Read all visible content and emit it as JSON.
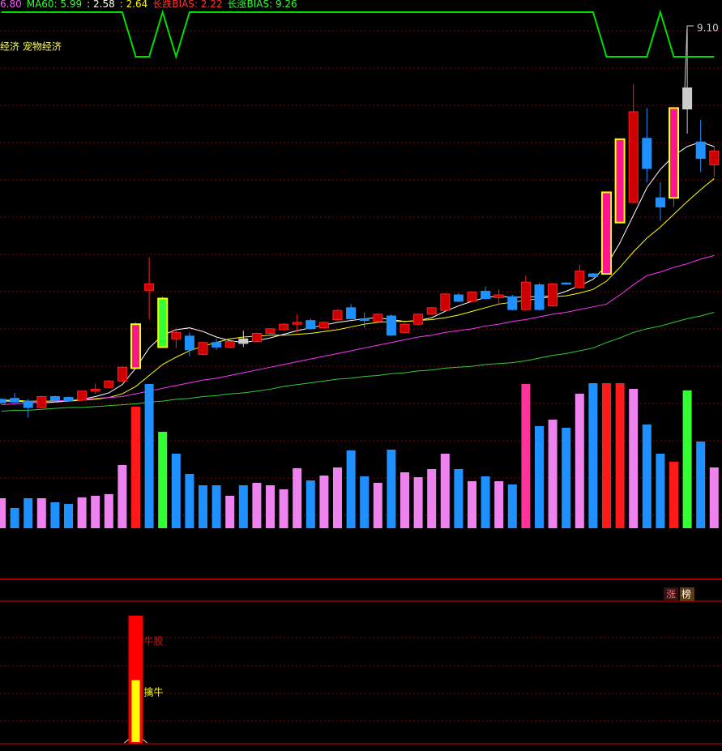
{
  "header": {
    "items": [
      {
        "text": "6.80",
        "color": "#ff55ff"
      },
      {
        "text": "MA60: 5.99",
        "color": "#33ff33"
      },
      {
        "text": ": 2.58",
        "color": "#ffffff"
      },
      {
        "text": ": 2.64",
        "color": "#ffff00"
      },
      {
        "text": "长跌BIAS: 2.22",
        "color": "#ff3030"
      },
      {
        "text": "长涨BIAS: 9.26",
        "color": "#33ff33"
      }
    ],
    "concept": "经济 宠物经济",
    "price_mark": "9.10",
    "badges": [
      "涨",
      "榜"
    ]
  },
  "chart_data": [
    {
      "type": "candlestick",
      "open": [
        5.04,
        5.05,
        5.02,
        4.95,
        5.07,
        5.06,
        5.03,
        5.13,
        5.17,
        5.24,
        5.38,
        6.23,
        6.14,
        5.7,
        5.73,
        5.53,
        5.66,
        5.61,
        5.7,
        5.67,
        5.76,
        5.8,
        5.86,
        5.9,
        5.82,
        5.91,
        6.04,
        5.92,
        5.89,
        5.95,
        5.77,
        5.86,
        5.97,
        6.01,
        6.18,
        6.11,
        6.22,
        6.15,
        6.16,
        6.02,
        6.29,
        6.06,
        6.31,
        6.26,
        6.41,
        6.41,
        6.97,
        7.19,
        7.89,
        7.24,
        7.24,
        8.44,
        7.85,
        7.6
      ],
      "high": [
        5.05,
        5.11,
        5.04,
        5.08,
        5.08,
        5.07,
        5.13,
        5.21,
        5.25,
        5.4,
        5.88,
        6.59,
        6.16,
        5.82,
        5.77,
        5.66,
        5.7,
        5.68,
        5.79,
        5.77,
        5.82,
        5.87,
        5.97,
        5.92,
        5.89,
        6.02,
        6.08,
        5.99,
        5.98,
        5.97,
        5.87,
        5.98,
        6.05,
        6.2,
        6.2,
        6.22,
        6.27,
        6.24,
        6.18,
        6.39,
        6.31,
        6.31,
        6.32,
        6.51,
        6.42,
        7.3,
        7.88,
        8.48,
        8.22,
        7.41,
        8.22,
        9.1,
        8.09,
        7.81
      ],
      "low": [
        4.99,
        5.0,
        4.84,
        4.94,
        5.02,
        5.01,
        5.02,
        5.1,
        5.16,
        5.23,
        5.37,
        5.91,
        5.6,
        5.6,
        5.51,
        5.52,
        5.58,
        5.6,
        5.61,
        5.66,
        5.75,
        5.79,
        5.77,
        5.8,
        5.81,
        5.9,
        5.91,
        5.82,
        5.88,
        5.73,
        5.76,
        5.85,
        5.96,
        6.0,
        6.1,
        6.1,
        6.13,
        6.08,
        6.01,
        6.01,
        6.01,
        6.05,
        6.29,
        6.25,
        6.37,
        6.4,
        6.96,
        7.18,
        7.41,
        6.99,
        7.14,
        7.94,
        7.52,
        7.47
      ],
      "close": [
        5.0,
        5.01,
        4.95,
        5.07,
        5.03,
        5.02,
        5.13,
        5.15,
        5.24,
        5.39,
        5.86,
        6.3,
        5.61,
        5.77,
        5.58,
        5.66,
        5.61,
        5.67,
        5.65,
        5.76,
        5.81,
        5.86,
        5.88,
        5.81,
        5.88,
        6.01,
        5.92,
        5.9,
        5.97,
        5.74,
        5.86,
        5.97,
        6.04,
        6.19,
        6.11,
        6.21,
        6.14,
        6.18,
        6.02,
        6.32,
        6.02,
        6.3,
        6.3,
        6.44,
        6.38,
        7.3,
        7.88,
        8.18,
        7.56,
        7.14,
        8.22,
        8.21,
        7.67,
        7.75
      ],
      "colors": [
        "#1e90ff",
        "#1e90ff",
        "#1e90ff",
        "#cc0000",
        "#1e90ff",
        "#1e90ff",
        "#cc0000",
        "#cc0000",
        "#cc0000",
        "#cc0000",
        "#ff1493",
        "#cc0000",
        "#33ff33",
        "#cc0000",
        "#1e90ff",
        "#cc0000",
        "#1e90ff",
        "#cc0000",
        "#cccccc",
        "#cc0000",
        "#cc0000",
        "#cc0000",
        "#cc0000",
        "#1e90ff",
        "#cc0000",
        "#cc0000",
        "#1e90ff",
        "#1e90ff",
        "#cc0000",
        "#1e90ff",
        "#cc0000",
        "#cc0000",
        "#cc0000",
        "#cc0000",
        "#1e90ff",
        "#cc0000",
        "#1e90ff",
        "#cc0000",
        "#1e90ff",
        "#cc0000",
        "#1e90ff",
        "#cc0000",
        "#1e90ff",
        "#cc0000",
        "#1e90ff",
        "#ff1493",
        "#ff1493",
        "#cc0000",
        "#1e90ff",
        "#1e90ff",
        "#ff1493",
        "#cccccc",
        "#1e90ff",
        "#cc0000"
      ],
      "lines": [
        {
          "color": "#ffffff",
          "values": [
            5.02,
            5.02,
            5.01,
            5.0,
            5.01,
            5.02,
            5.04,
            5.07,
            5.11,
            5.2,
            5.38,
            5.6,
            5.74,
            5.8,
            5.82,
            5.78,
            5.72,
            5.68,
            5.66,
            5.68,
            5.71,
            5.75,
            5.79,
            5.82,
            5.85,
            5.88,
            5.9,
            5.92,
            5.93,
            5.91,
            5.89,
            5.9,
            5.93,
            6.0,
            6.06,
            6.11,
            6.15,
            6.17,
            6.15,
            6.16,
            6.16,
            6.17,
            6.22,
            6.28,
            6.35,
            6.5,
            6.75,
            7.05,
            7.35,
            7.55,
            7.7,
            7.8,
            7.85,
            7.8
          ]
        },
        {
          "color": "#ffff00",
          "values": [
            5.03,
            5.03,
            5.02,
            5.02,
            5.02,
            5.02,
            5.03,
            5.04,
            5.06,
            5.1,
            5.18,
            5.3,
            5.42,
            5.5,
            5.57,
            5.62,
            5.66,
            5.7,
            5.72,
            5.73,
            5.74,
            5.74,
            5.75,
            5.76,
            5.78,
            5.8,
            5.83,
            5.86,
            5.88,
            5.89,
            5.89,
            5.9,
            5.91,
            5.93,
            5.96,
            6.0,
            6.04,
            6.08,
            6.1,
            6.12,
            6.14,
            6.16,
            6.17,
            6.2,
            6.24,
            6.33,
            6.48,
            6.65,
            6.8,
            6.92,
            7.06,
            7.2,
            7.33,
            7.45
          ]
        },
        {
          "color": "#ff33ff",
          "values": [
            4.98,
            4.99,
            5.0,
            5.01,
            5.02,
            5.03,
            5.04,
            5.05,
            5.06,
            5.07,
            5.1,
            5.13,
            5.16,
            5.19,
            5.22,
            5.25,
            5.27,
            5.3,
            5.33,
            5.36,
            5.39,
            5.42,
            5.45,
            5.48,
            5.51,
            5.54,
            5.57,
            5.6,
            5.63,
            5.66,
            5.69,
            5.72,
            5.74,
            5.77,
            5.79,
            5.81,
            5.84,
            5.86,
            5.89,
            5.91,
            5.94,
            5.97,
            5.99,
            6.02,
            6.05,
            6.08,
            6.18,
            6.29,
            6.39,
            6.43,
            6.48,
            6.52,
            6.57,
            6.61
          ]
        },
        {
          "color": "#33cc33",
          "values": [
            4.91,
            4.92,
            4.92,
            4.93,
            4.94,
            4.95,
            4.95,
            4.96,
            4.97,
            4.98,
            4.99,
            5.01,
            5.02,
            5.04,
            5.05,
            5.07,
            5.08,
            5.1,
            5.11,
            5.13,
            5.15,
            5.18,
            5.2,
            5.22,
            5.24,
            5.26,
            5.27,
            5.29,
            5.3,
            5.32,
            5.33,
            5.35,
            5.36,
            5.38,
            5.39,
            5.4,
            5.42,
            5.43,
            5.44,
            5.46,
            5.49,
            5.52,
            5.54,
            5.57,
            5.6,
            5.66,
            5.71,
            5.77,
            5.81,
            5.84,
            5.88,
            5.92,
            5.95,
            5.99
          ]
        }
      ],
      "ylim": [
        4.8,
        9.4
      ]
    },
    {
      "type": "bar",
      "values": [
        37,
        25,
        37,
        37,
        32,
        30,
        38,
        40,
        42,
        78,
        150,
        178,
        119,
        92,
        67,
        53,
        53,
        40,
        53,
        56,
        53,
        48,
        74,
        59,
        65,
        75,
        96,
        64,
        56,
        97,
        69,
        63,
        73,
        92,
        73,
        58,
        64,
        58,
        54,
        178,
        126,
        134,
        124,
        166,
        179,
        179,
        179,
        172,
        128,
        92,
        82,
        170,
        107,
        75
      ],
      "colors": [
        "#ee82ee",
        "#1e90ff",
        "#1e90ff",
        "#ee82ee",
        "#1e90ff",
        "#1e90ff",
        "#ee82ee",
        "#ee82ee",
        "#ee82ee",
        "#ee82ee",
        "#ff1a1a",
        "#1e90ff",
        "#33ff33",
        "#1e90ff",
        "#1e90ff",
        "#1e90ff",
        "#1e90ff",
        "#ee82ee",
        "#1e90ff",
        "#ee82ee",
        "#ee82ee",
        "#ee82ee",
        "#ee82ee",
        "#1e90ff",
        "#ee82ee",
        "#ee82ee",
        "#1e90ff",
        "#1e90ff",
        "#ee82ee",
        "#1e90ff",
        "#ee82ee",
        "#ee82ee",
        "#ee82ee",
        "#ee82ee",
        "#1e90ff",
        "#ee82ee",
        "#1e90ff",
        "#ee82ee",
        "#1e90ff",
        "#ff3399",
        "#1e90ff",
        "#ee82ee",
        "#1e90ff",
        "#ee82ee",
        "#1e90ff",
        "#ff1a1a",
        "#ff1a1a",
        "#ee82ee",
        "#1e90ff",
        "#1e90ff",
        "#ff1a1a",
        "#33ff33",
        "#1e90ff",
        "#ee82ee"
      ],
      "ylim": [
        0,
        180
      ]
    },
    {
      "type": "step",
      "values": [
        1,
        1,
        1,
        1,
        1,
        1,
        1,
        1,
        1,
        1,
        0,
        0,
        1,
        0,
        1,
        1,
        1,
        1,
        1,
        1,
        1,
        1,
        1,
        1,
        1,
        1,
        1,
        1,
        1,
        1,
        1,
        1,
        1,
        1,
        1,
        1,
        1,
        1,
        1,
        1,
        1,
        1,
        1,
        1,
        1,
        0,
        0,
        0,
        0,
        1,
        0,
        0,
        0,
        0
      ],
      "color": "#00dd00",
      "ylim": [
        0,
        1
      ]
    },
    {
      "type": "signal",
      "series": [
        {
          "name": "牛股",
          "color": "#ff0000",
          "values": [
            100
          ]
        },
        {
          "name": "擒牛",
          "color": "#ffff00",
          "values": [
            50
          ]
        }
      ],
      "ylim": [
        0,
        100
      ]
    }
  ]
}
